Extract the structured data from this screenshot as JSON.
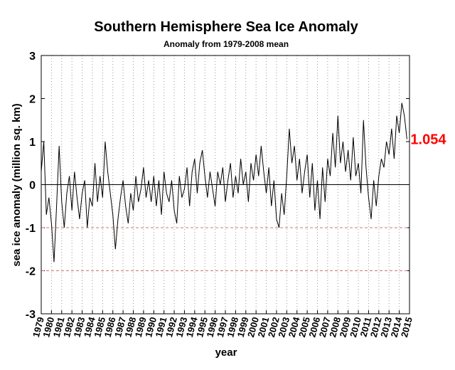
{
  "chart_data": {
    "type": "line",
    "title": "Southern Hemisphere Sea Ice Anomaly",
    "subtitle": "Anomaly from 1979-2008 mean",
    "xlabel": "year",
    "ylabel": "sea ice anomaly (million sq. km)",
    "annotation": "1.054",
    "annotation_color": "#ff0000",
    "color": "#000000",
    "xlim": [
      1979,
      2015
    ],
    "ylim": [
      -3,
      3
    ],
    "xticks": [
      1979,
      1980,
      1981,
      1982,
      1983,
      1984,
      1985,
      1986,
      1987,
      1988,
      1989,
      1990,
      1991,
      1992,
      1993,
      1994,
      1995,
      1996,
      1997,
      1998,
      1999,
      2000,
      2001,
      2002,
      2003,
      2004,
      2005,
      2006,
      2007,
      2008,
      2009,
      2010,
      2011,
      2012,
      2013,
      2014,
      2015
    ],
    "yticks": [
      -3,
      -2,
      -1,
      0,
      1,
      2,
      3
    ],
    "grid": true,
    "reference_lines": [
      {
        "y": 0,
        "color": "#000000",
        "style": "solid"
      },
      {
        "y": -1,
        "color": "#cc7777",
        "style": "dashed"
      },
      {
        "y": -2,
        "color": "#cc7777",
        "style": "dashed"
      }
    ],
    "x": [
      1979,
      1979.25,
      1979.5,
      1979.75,
      1980,
      1980.25,
      1980.5,
      1980.75,
      1981,
      1981.25,
      1981.5,
      1981.75,
      1982,
      1982.25,
      1982.5,
      1982.75,
      1983,
      1983.25,
      1983.5,
      1983.75,
      1984,
      1984.25,
      1984.5,
      1984.75,
      1985,
      1985.25,
      1985.5,
      1985.75,
      1986,
      1986.25,
      1986.5,
      1986.75,
      1987,
      1987.25,
      1987.5,
      1987.75,
      1988,
      1988.25,
      1988.5,
      1988.75,
      1989,
      1989.25,
      1989.5,
      1989.75,
      1990,
      1990.25,
      1990.5,
      1990.75,
      1991,
      1991.25,
      1991.5,
      1991.75,
      1992,
      1992.25,
      1992.5,
      1992.75,
      1993,
      1993.25,
      1993.5,
      1993.75,
      1994,
      1994.25,
      1994.5,
      1994.75,
      1995,
      1995.25,
      1995.5,
      1995.75,
      1996,
      1996.25,
      1996.5,
      1996.75,
      1997,
      1997.25,
      1997.5,
      1997.75,
      1998,
      1998.25,
      1998.5,
      1998.75,
      1999,
      1999.25,
      1999.5,
      1999.75,
      2000,
      2000.25,
      2000.5,
      2000.75,
      2001,
      2001.25,
      2001.5,
      2001.75,
      2002,
      2002.25,
      2002.5,
      2002.75,
      2003,
      2003.25,
      2003.5,
      2003.75,
      2004,
      2004.25,
      2004.5,
      2004.75,
      2005,
      2005.25,
      2005.5,
      2005.75,
      2006,
      2006.25,
      2006.5,
      2006.75,
      2007,
      2007.25,
      2007.5,
      2007.75,
      2008,
      2008.25,
      2008.5,
      2008.75,
      2009,
      2009.25,
      2009.5,
      2009.75,
      2010,
      2010.25,
      2010.5,
      2010.75,
      2011,
      2011.25,
      2011.5,
      2011.75,
      2012,
      2012.25,
      2012.5,
      2012.75,
      2013,
      2013.25,
      2013.5,
      2013.75,
      2014,
      2014.25,
      2014.5,
      2014.75
    ],
    "values": [
      0.3,
      1.0,
      -0.7,
      -0.3,
      -0.9,
      -1.8,
      -0.5,
      0.9,
      -0.4,
      -1.0,
      -0.2,
      0.2,
      -0.6,
      0.3,
      -0.3,
      -0.8,
      -0.2,
      0.1,
      -1.0,
      -0.3,
      -0.5,
      0.5,
      -0.4,
      0.2,
      -0.3,
      1.0,
      0.3,
      -0.2,
      -0.7,
      -1.5,
      -0.8,
      -0.3,
      0.1,
      -0.5,
      -0.9,
      -0.2,
      -0.6,
      0.2,
      -0.4,
      -0.1,
      0.4,
      -0.3,
      0.1,
      -0.4,
      0.2,
      -0.5,
      0.1,
      -0.7,
      0.3,
      -0.2,
      -0.4,
      0.1,
      -0.6,
      -0.9,
      0.2,
      -0.3,
      -0.1,
      0.4,
      -0.5,
      0.3,
      0.6,
      -0.2,
      0.5,
      0.8,
      0.2,
      -0.3,
      0.3,
      -0.1,
      -0.5,
      0.3,
      0.0,
      0.4,
      -0.4,
      0.1,
      0.5,
      -0.3,
      0.2,
      -0.2,
      0.6,
      0.0,
      0.3,
      -0.4,
      0.5,
      0.1,
      0.7,
      0.2,
      0.9,
      0.3,
      -0.2,
      0.4,
      -0.5,
      0.1,
      -0.8,
      -1.0,
      -0.2,
      -0.7,
      0.2,
      1.3,
      0.5,
      0.9,
      0.1,
      0.6,
      -0.2,
      0.3,
      0.7,
      -0.3,
      0.5,
      -0.6,
      0.1,
      -0.8,
      0.4,
      -0.4,
      0.6,
      0.2,
      1.2,
      0.4,
      1.6,
      0.5,
      1.0,
      0.3,
      0.8,
      0.1,
      1.1,
      0.2,
      0.5,
      -0.2,
      1.5,
      0.4,
      -0.3,
      -0.8,
      0.1,
      -0.5,
      0.2,
      0.6,
      0.4,
      1.0,
      0.7,
      1.3,
      0.6,
      1.6,
      1.2,
      1.9,
      1.6,
      1.054
    ]
  }
}
